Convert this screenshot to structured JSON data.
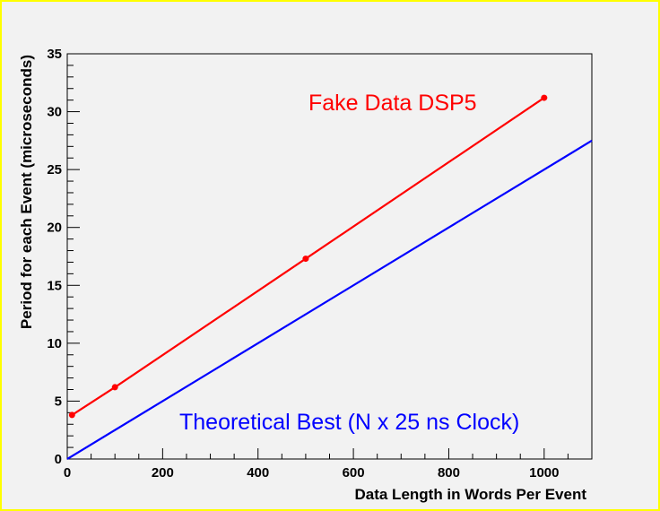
{
  "chart_data": {
    "type": "line",
    "xlabel": "Data Length in Words Per Event",
    "ylabel": "Period for each Event (microseconds)",
    "xlim": [
      0,
      1100
    ],
    "ylim": [
      0,
      35
    ],
    "x_ticks": [
      0,
      200,
      400,
      600,
      800,
      1000
    ],
    "y_ticks": [
      0,
      5,
      10,
      15,
      20,
      25,
      30,
      35
    ],
    "grid": false,
    "series": [
      {
        "name": "Fake Data DSP5",
        "color": "#ff0000",
        "markers": true,
        "x": [
          10,
          100,
          500,
          1000
        ],
        "y": [
          3.8,
          6.2,
          17.3,
          31.2
        ]
      },
      {
        "name": "Theoretical Best (N x 25 ns Clock)",
        "color": "#0000ff",
        "markers": false,
        "x": [
          0,
          1100
        ],
        "y": [
          0,
          27.5
        ]
      }
    ]
  }
}
